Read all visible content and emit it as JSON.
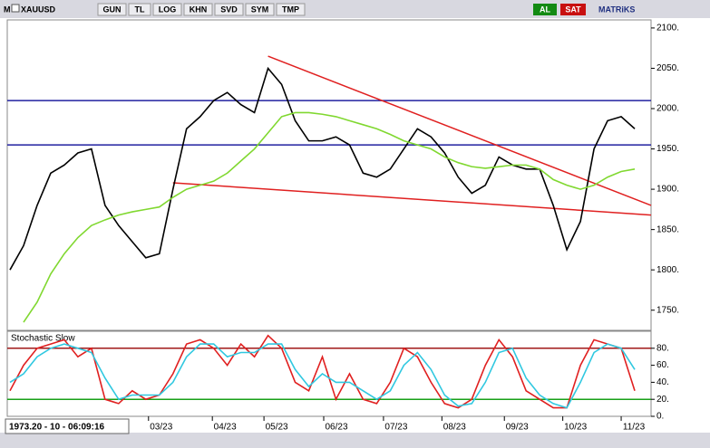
{
  "toolbar": {
    "symbol_prefix": "M",
    "symbol": "XAUUSD",
    "buttons": [
      "GUN",
      "TL",
      "LOG",
      "KHN",
      "SVD",
      "SYM",
      "TMP"
    ],
    "buy": "AL",
    "sell": "SAT",
    "brand": "MATRiKS"
  },
  "status": "1973.20 - 10 - 06:09:16",
  "chart_data": [
    {
      "type": "line",
      "x": [
        0,
        1,
        2,
        3,
        4,
        5,
        6,
        7,
        8,
        9,
        10,
        11,
        12,
        13,
        14,
        15,
        16,
        17,
        18,
        19,
        20,
        21,
        22,
        23,
        24,
        25,
        26,
        27,
        28,
        29,
        30,
        31,
        32,
        33,
        34,
        35,
        36,
        37,
        38,
        39,
        40,
        41,
        42,
        43,
        44,
        45,
        46
      ],
      "series": [
        {
          "color": "#000000",
          "values": [
            1800,
            1830,
            1880,
            1920,
            1930,
            1945,
            1950,
            1880,
            1855,
            1835,
            1815,
            1820,
            1900,
            1975,
            1990,
            2010,
            2020,
            2005,
            1995,
            2050,
            2030,
            1985,
            1960,
            1960,
            1965,
            1955,
            1920,
            1915,
            1925,
            1950,
            1975,
            1965,
            1945,
            1915,
            1895,
            1905,
            1940,
            1930,
            1925,
            1925,
            1880,
            1825,
            1860,
            1950,
            1985,
            1990,
            1975
          ]
        },
        {
          "color": "#80d830",
          "values": [
            null,
            1735,
            1760,
            1795,
            1820,
            1840,
            1855,
            1862,
            1868,
            1872,
            1875,
            1878,
            1890,
            1900,
            1905,
            1910,
            1920,
            1935,
            1950,
            1970,
            1990,
            1995,
            1995,
            1993,
            1990,
            1985,
            1980,
            1975,
            1968,
            1960,
            1955,
            1950,
            1940,
            1933,
            1928,
            1926,
            1928,
            1930,
            1930,
            1925,
            1912,
            1905,
            1900,
            1905,
            1915,
            1922,
            1925
          ]
        }
      ],
      "hlines": [
        {
          "value": 2010,
          "color": "#2020a0"
        },
        {
          "value": 1955,
          "color": "#2020a0"
        }
      ],
      "trendlines": [
        {
          "x": [
            19,
            47.2
          ],
          "y": [
            2065,
            1880
          ],
          "color": "#e02020"
        },
        {
          "x": [
            12,
            47.2
          ],
          "y": [
            1908,
            1868
          ],
          "color": "#e02020"
        }
      ],
      "xlim": [
        -0.2,
        47.2
      ],
      "ylim": [
        1725,
        2110
      ],
      "yticks": [
        {
          "value": 1750,
          "label": "1750."
        },
        {
          "value": 1800,
          "label": "1800."
        },
        {
          "value": 1850,
          "label": "1850."
        },
        {
          "value": 1900,
          "label": "1900."
        },
        {
          "value": 1950,
          "label": "1950."
        },
        {
          "value": 2000,
          "label": "2000."
        },
        {
          "value": 2050,
          "label": "2050."
        },
        {
          "value": 2100,
          "label": "2100."
        }
      ]
    },
    {
      "type": "line",
      "title": "Stochastic Slow",
      "x": [
        0,
        1,
        2,
        3,
        4,
        5,
        6,
        7,
        8,
        9,
        10,
        11,
        12,
        13,
        14,
        15,
        16,
        17,
        18,
        19,
        20,
        21,
        22,
        23,
        24,
        25,
        26,
        27,
        28,
        29,
        30,
        31,
        32,
        33,
        34,
        35,
        36,
        37,
        38,
        39,
        40,
        41,
        42,
        43,
        44,
        45,
        46
      ],
      "series": [
        {
          "color": "#e02020",
          "values": [
            30,
            60,
            80,
            85,
            90,
            70,
            80,
            20,
            15,
            30,
            20,
            25,
            50,
            85,
            90,
            80,
            60,
            85,
            70,
            95,
            80,
            40,
            30,
            70,
            20,
            50,
            20,
            15,
            40,
            80,
            70,
            40,
            15,
            10,
            20,
            60,
            90,
            70,
            30,
            20,
            10,
            10,
            60,
            90,
            85,
            80,
            30
          ]
        },
        {
          "color": "#30c8e0",
          "values": [
            40,
            50,
            70,
            80,
            85,
            80,
            75,
            45,
            20,
            25,
            25,
            25,
            40,
            70,
            85,
            85,
            70,
            75,
            75,
            85,
            85,
            55,
            35,
            50,
            40,
            40,
            30,
            20,
            30,
            60,
            75,
            55,
            25,
            12,
            15,
            40,
            75,
            80,
            45,
            25,
            15,
            10,
            40,
            75,
            85,
            80,
            55
          ]
        }
      ],
      "hlines": [
        {
          "value": 80,
          "color": "#a01818"
        },
        {
          "value": 20,
          "color": "#18a018"
        }
      ],
      "xlim": [
        -0.2,
        47.2
      ],
      "ylim": [
        0,
        100
      ],
      "yticks": [
        {
          "value": 0,
          "label": "0."
        },
        {
          "value": 20,
          "label": "20."
        },
        {
          "value": 40,
          "label": "40."
        },
        {
          "value": 60,
          "label": "60."
        },
        {
          "value": 80,
          "label": "80."
        }
      ],
      "xticks": [
        {
          "value": 10.2,
          "label": "03/23"
        },
        {
          "value": 14.9,
          "label": "04/23"
        },
        {
          "value": 18.7,
          "label": "05/23"
        },
        {
          "value": 23.1,
          "label": "06/23"
        },
        {
          "value": 27.5,
          "label": "07/23"
        },
        {
          "value": 31.8,
          "label": "08/23"
        },
        {
          "value": 36.4,
          "label": "09/23"
        },
        {
          "value": 40.7,
          "label": "10/23"
        },
        {
          "value": 45,
          "label": "11/23"
        }
      ]
    }
  ]
}
